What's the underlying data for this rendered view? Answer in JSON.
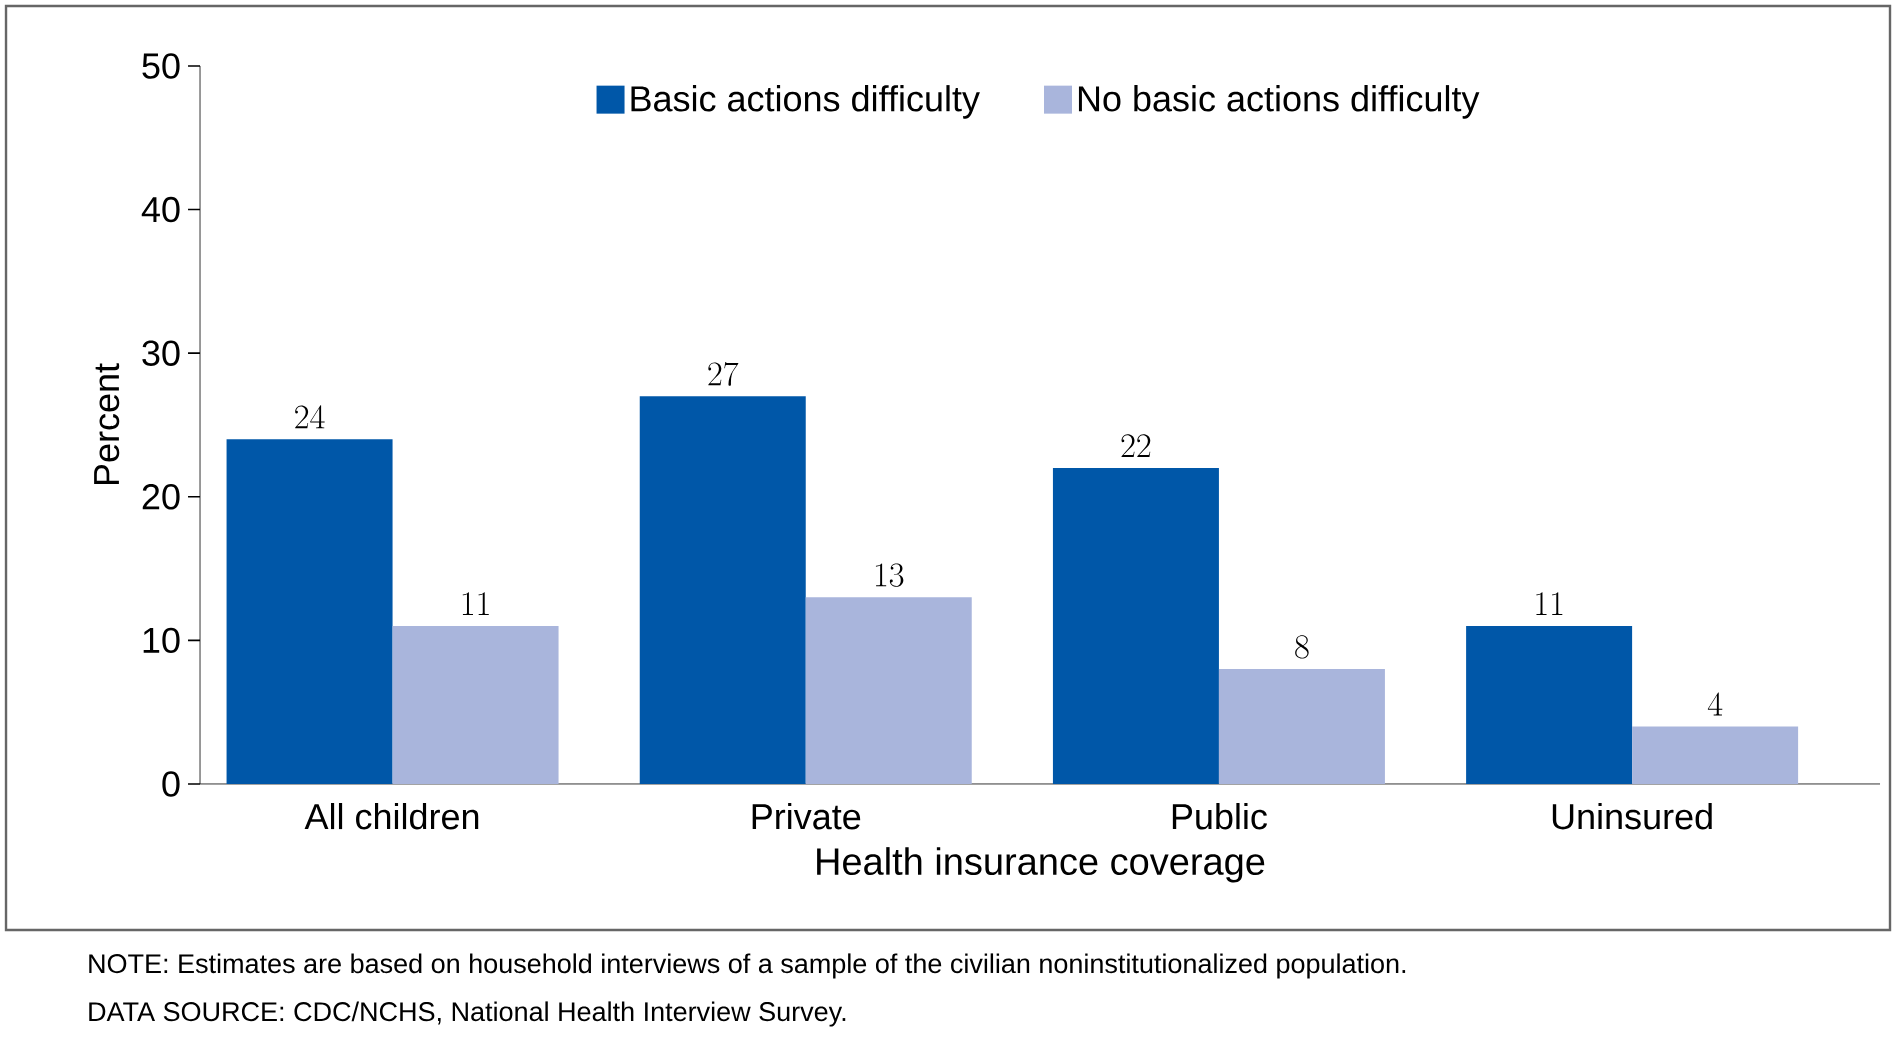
{
  "chart_data": {
    "type": "bar",
    "xlabel": "Health insurance coverage",
    "ylabel": "Percent",
    "categories": [
      "All children",
      "Private",
      "Public",
      "Uninsured"
    ],
    "series": [
      {
        "name": "Basic actions difficulty",
        "color": "#0057a8",
        "values": [
          24,
          27,
          22,
          11
        ]
      },
      {
        "name": "No basic actions difficulty",
        "color": "#a9b5dc",
        "values": [
          11,
          13,
          8,
          4
        ]
      }
    ],
    "ylim": [
      0,
      50
    ],
    "yticks": [
      0,
      10,
      20,
      30,
      40,
      50
    ],
    "data_labels": true,
    "legend": "top",
    "annotations": [
      "NOTE: Estimates are based on household interviews of a sample of the civilian noninstitutionalized population.",
      "DATA SOURCE: CDC/NCHS, National Health Interview Survey."
    ]
  }
}
